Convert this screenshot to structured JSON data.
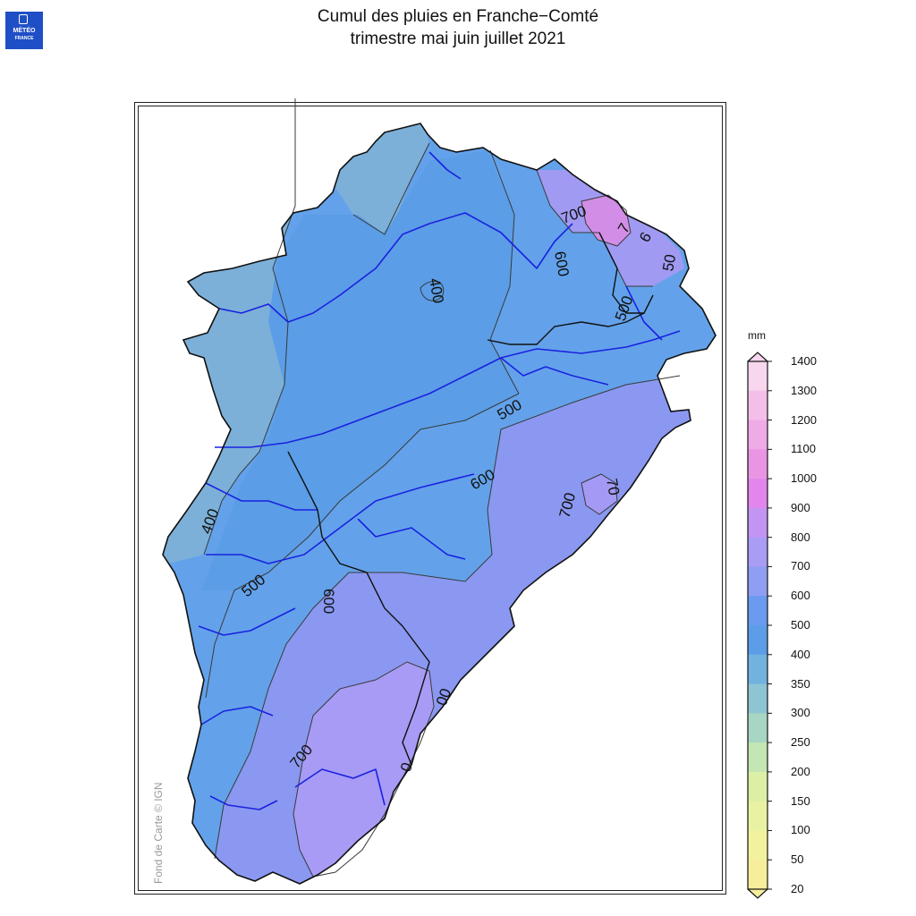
{
  "logo": {
    "line1": "MÉTÉO",
    "line2": "FRANCE",
    "color": "#1f4fc6"
  },
  "title": {
    "line1": "Cumul des pluies en Franche−Comté",
    "line2": "trimestre mai juin juillet 2021"
  },
  "credit": "Fond de Carte © IGN",
  "legend": {
    "unit": "mm",
    "ticks": [
      "1400",
      "1300",
      "1200",
      "1100",
      "1000",
      "900",
      "800",
      "700",
      "600",
      "500",
      "400",
      "350",
      "300",
      "250",
      "200",
      "150",
      "100",
      "50",
      "20"
    ],
    "colors": [
      "#f7d6ee",
      "#f3bfe9",
      "#efabe6",
      "#ea95e4",
      "#e286ee",
      "#c494f3",
      "#a99cf4",
      "#8f9df2",
      "#6a9bf0",
      "#5c9de8",
      "#72b2de",
      "#8dc5d4",
      "#a8d6c4",
      "#c4e6b4",
      "#dcefa6",
      "#e8f2a2",
      "#f2f29e",
      "#f6ee9a"
    ]
  },
  "isoline_labels": [
    "700",
    "7",
    "600",
    "6",
    "50",
    "500",
    "400",
    "500",
    "600",
    "700",
    "70",
    "400",
    "500",
    "600",
    "700",
    "00",
    "0"
  ],
  "colors": {
    "river": "#1a22e0",
    "isoline": "#3a3a3a",
    "border": "#111111"
  }
}
